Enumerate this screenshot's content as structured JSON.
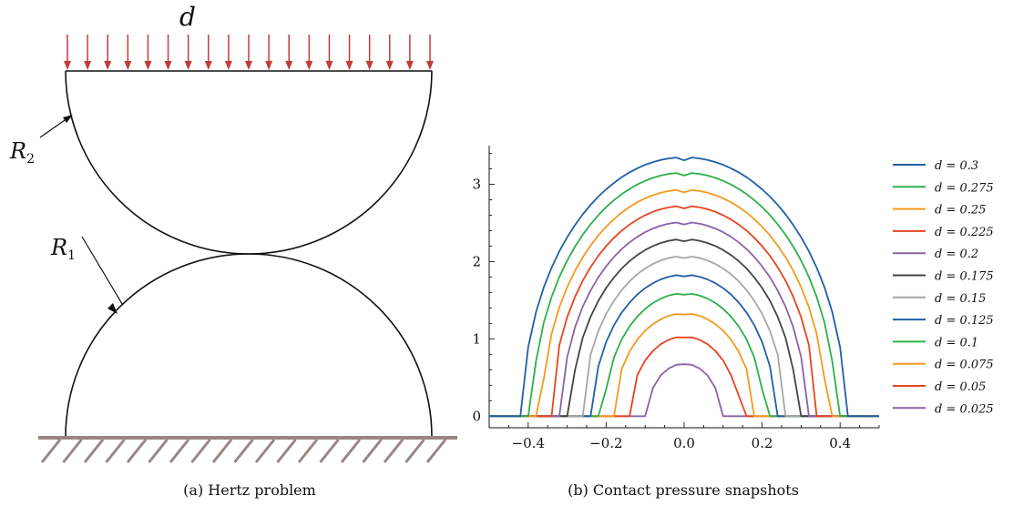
{
  "figure_a": {
    "caption": "(a) Hertz problem",
    "load_label": "d",
    "radius_top_label": "R",
    "radius_top_sub": "2",
    "radius_bottom_label": "R",
    "radius_bottom_sub": "1",
    "load_arrow_color": "#c23b3b",
    "ground_color": "#9a8484"
  },
  "figure_b": {
    "caption": "(b) Contact pressure snapshots"
  },
  "chart_data": {
    "type": "line",
    "title": "",
    "xlabel": "",
    "ylabel": "",
    "xlim": [
      -0.5,
      0.5
    ],
    "ylim": [
      -0.15,
      3.5
    ],
    "xticks": [
      -0.4,
      -0.2,
      0.0,
      0.2,
      0.4
    ],
    "xtick_labels": [
      "−0.4",
      "−0.2",
      "0.0",
      "0.2",
      "0.4"
    ],
    "yticks": [
      0,
      1,
      2,
      3
    ],
    "ytick_labels": [
      "0",
      "1",
      "2",
      "3"
    ],
    "grid": false,
    "legend_position": "right",
    "series": [
      {
        "name": "d = 0.3",
        "label": "d = 0.3",
        "color": "#1f5fa8",
        "peak": 3.35,
        "half_width": 0.415
      },
      {
        "name": "d = 0.275",
        "label": "d = 0.275",
        "color": "#2db04a",
        "peak": 3.15,
        "half_width": 0.39
      },
      {
        "name": "d = 0.25",
        "label": "d = 0.25",
        "color": "#f39a1e",
        "peak": 2.93,
        "half_width": 0.365
      },
      {
        "name": "d = 0.225",
        "label": "d = 0.225",
        "color": "#e8431f",
        "peak": 2.72,
        "half_width": 0.34
      },
      {
        "name": "d = 0.2",
        "label": "d = 0.2",
        "color": "#8a63a6",
        "peak": 2.51,
        "half_width": 0.315
      },
      {
        "name": "d = 0.175",
        "label": "d = 0.175",
        "color": "#444444",
        "peak": 2.29,
        "half_width": 0.29
      },
      {
        "name": "d = 0.15",
        "label": "d = 0.15",
        "color": "#a6a6a6",
        "peak": 2.07,
        "half_width": 0.26
      },
      {
        "name": "d = 0.125",
        "label": "d = 0.125",
        "color": "#1f5fa8",
        "peak": 1.83,
        "half_width": 0.235
      },
      {
        "name": "d = 0.1",
        "label": "d = 0.1",
        "color": "#2db04a",
        "peak": 1.59,
        "half_width": 0.205
      },
      {
        "name": "d = 0.075",
        "label": "d = 0.075",
        "color": "#f39a1e",
        "peak": 1.33,
        "half_width": 0.18
      },
      {
        "name": "d = 0.05",
        "label": "d = 0.05",
        "color": "#e8431f",
        "peak": 1.03,
        "half_width": 0.14
      },
      {
        "name": "d = 0.025",
        "label": "d = 0.025",
        "color": "#8a63a6",
        "peak": 0.68,
        "half_width": 0.095
      }
    ]
  }
}
